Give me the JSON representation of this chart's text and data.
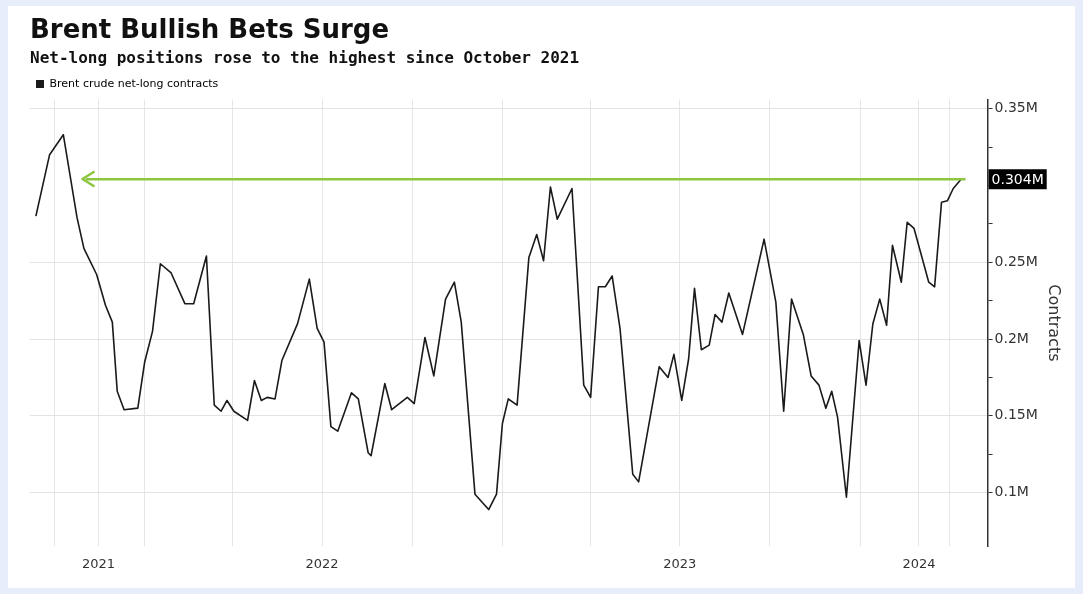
{
  "chart_data": {
    "type": "line",
    "title": "Brent Bullish Bets Surge",
    "subtitle": "Net-long positions rose to the highest since October 2021",
    "ylabel": "Contracts",
    "x": [
      "2021-09-12",
      "2021-09-26",
      "2021-10-10",
      "2021-10-24",
      "2021-10-31",
      "2021-11-13",
      "2021-11-22",
      "2021-11-29",
      "2021-12-04",
      "2021-12-11",
      "2021-12-25",
      "2022-01-01",
      "2022-01-09",
      "2022-01-17",
      "2022-01-28",
      "2022-02-11",
      "2022-02-20",
      "2022-03-05",
      "2022-03-13",
      "2022-03-20",
      "2022-03-26",
      "2022-04-02",
      "2022-04-16",
      "2022-04-23",
      "2022-04-30",
      "2022-05-06",
      "2022-05-14",
      "2022-05-21",
      "2022-06-06",
      "2022-06-18",
      "2022-06-26",
      "2022-07-03",
      "2022-07-10",
      "2022-07-17",
      "2022-07-31",
      "2022-08-07",
      "2022-08-17",
      "2022-08-20",
      "2022-09-03",
      "2022-09-10",
      "2022-09-26",
      "2022-10-03",
      "2022-10-14",
      "2022-10-23",
      "2022-11-04",
      "2022-11-13",
      "2022-11-20",
      "2022-12-04",
      "2022-12-18",
      "2022-12-26",
      "2023-01-01",
      "2023-01-07",
      "2023-01-16",
      "2023-01-28",
      "2023-02-05",
      "2023-02-12",
      "2023-02-19",
      "2023-02-26",
      "2023-03-13",
      "2023-03-25",
      "2023-04-01",
      "2023-04-09",
      "2023-04-16",
      "2023-04-23",
      "2023-05-01",
      "2023-05-14",
      "2023-05-20",
      "2023-06-10",
      "2023-06-19",
      "2023-06-25",
      "2023-07-03",
      "2023-07-10",
      "2023-07-16",
      "2023-07-23",
      "2023-07-31",
      "2023-08-06",
      "2023-08-13",
      "2023-08-20",
      "2023-09-03",
      "2023-09-25",
      "2023-10-07",
      "2023-10-15",
      "2023-10-23",
      "2023-11-04",
      "2023-11-12",
      "2023-11-20",
      "2023-11-27",
      "2023-12-03",
      "2023-12-09",
      "2023-12-18",
      "2023-12-31",
      "2024-01-07",
      "2024-01-14",
      "2024-01-21",
      "2024-01-28",
      "2024-02-03",
      "2024-02-12",
      "2024-02-18",
      "2024-02-25",
      "2024-03-11",
      "2024-03-17",
      "2024-03-24",
      "2024-03-30",
      "2024-04-05",
      "2024-04-13"
    ],
    "series": [
      {
        "name": "Brent crude net-long contracts",
        "color": "#1a1a1a",
        "values": [
          0.28,
          0.32,
          0.333,
          0.279,
          0.259,
          0.242,
          0.222,
          0.211,
          0.166,
          0.154,
          0.155,
          0.185,
          0.205,
          0.249,
          0.243,
          0.223,
          0.223,
          0.254,
          0.157,
          0.153,
          0.16,
          0.153,
          0.147,
          0.173,
          0.16,
          0.162,
          0.161,
          0.186,
          0.21,
          0.239,
          0.207,
          0.198,
          0.143,
          0.14,
          0.165,
          0.161,
          0.126,
          0.124,
          0.171,
          0.154,
          0.162,
          0.158,
          0.201,
          0.176,
          0.226,
          0.237,
          0.211,
          0.099,
          0.089,
          0.099,
          0.145,
          0.161,
          0.157,
          0.253,
          0.268,
          0.251,
          0.299,
          0.278,
          0.298,
          0.17,
          0.162,
          0.234,
          0.234,
          0.241,
          0.207,
          0.112,
          0.107,
          0.182,
          0.175,
          0.19,
          0.16,
          0.187,
          0.233,
          0.193,
          0.196,
          0.216,
          0.211,
          0.23,
          0.203,
          0.265,
          0.224,
          0.153,
          0.226,
          0.203,
          0.176,
          0.17,
          0.155,
          0.166,
          0.149,
          0.097,
          0.199,
          0.17,
          0.21,
          0.226,
          0.209,
          0.261,
          0.237,
          0.276,
          0.272,
          0.237,
          0.234,
          0.289,
          0.29,
          0.298,
          0.304
        ]
      }
    ],
    "xlim": [
      "2021-09-06",
      "2024-05-10"
    ],
    "xticks": [
      {
        "value": "2021-10-01",
        "label": null
      },
      {
        "value": "2021-11-15",
        "label": "2021"
      },
      {
        "value": "2022-01-01",
        "label": null
      },
      {
        "value": "2022-04-01",
        "label": null
      },
      {
        "value": "2022-07-01",
        "label": "2022"
      },
      {
        "value": "2022-10-01",
        "label": null
      },
      {
        "value": "2023-01-01",
        "label": null
      },
      {
        "value": "2023-04-01",
        "label": null
      },
      {
        "value": "2023-07-01",
        "label": "2023"
      },
      {
        "value": "2023-10-01",
        "label": null
      },
      {
        "value": "2024-01-01",
        "label": null
      },
      {
        "value": "2024-03-01",
        "label": "2024"
      },
      {
        "value": "2024-04-01",
        "label": null
      }
    ],
    "ylim": [
      0.065,
      0.356
    ],
    "yticks": [
      {
        "value": 0.1,
        "label": "0.1M"
      },
      {
        "value": 0.125,
        "label": null
      },
      {
        "value": 0.15,
        "label": "0.15M"
      },
      {
        "value": 0.175,
        "label": null
      },
      {
        "value": 0.2,
        "label": "0.2M"
      },
      {
        "value": 0.225,
        "label": null
      },
      {
        "value": 0.25,
        "label": "0.25M"
      },
      {
        "value": 0.275,
        "label": null
      },
      {
        "value": 0.3,
        "label": null
      },
      {
        "value": 0.325,
        "label": null
      },
      {
        "value": 0.35,
        "label": "0.35M"
      }
    ],
    "ref_lines": [
      {
        "axis": "y",
        "value": 0.304,
        "label": "0.304M",
        "color": "#8dc63f"
      }
    ],
    "grid": true,
    "legend": "top left",
    "marker": "none",
    "line_style": "solid"
  }
}
